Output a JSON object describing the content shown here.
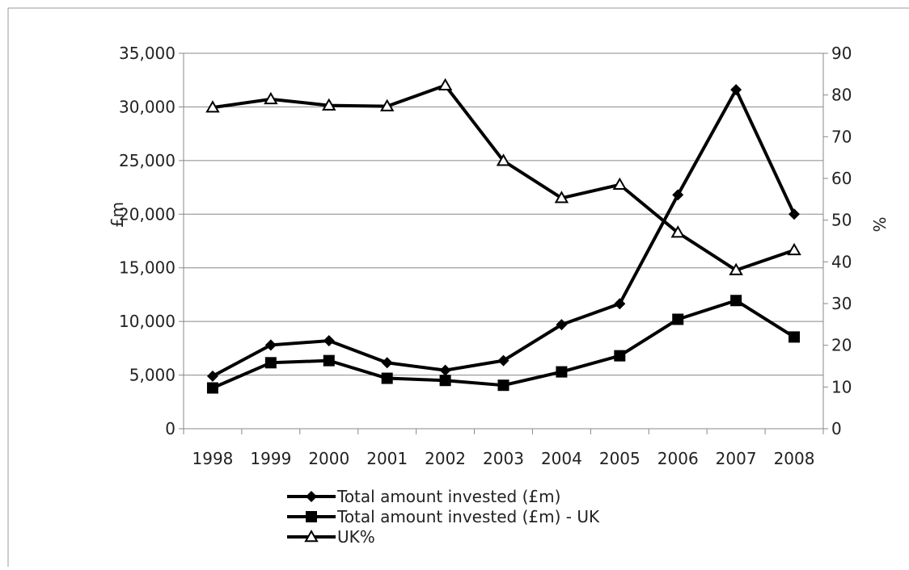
{
  "chart_data": {
    "type": "line",
    "categories": [
      "1998",
      "1999",
      "2000",
      "2001",
      "2002",
      "2003",
      "2004",
      "2005",
      "2006",
      "2007",
      "2008"
    ],
    "series": [
      {
        "name": "Total amount invested (£m)",
        "axis": "left",
        "marker": "diamond",
        "values": [
          4900,
          7800,
          8200,
          6150,
          5450,
          6350,
          9700,
          11650,
          21800,
          31600,
          20000
        ]
      },
      {
        "name": "Total amount invested (£m) - UK",
        "axis": "left",
        "marker": "square",
        "values": [
          3800,
          6150,
          6350,
          4700,
          4500,
          4050,
          5300,
          6800,
          10200,
          11950,
          8550
        ]
      },
      {
        "name": "UK%",
        "axis": "right",
        "marker": "triangle",
        "values": [
          77,
          79,
          77.5,
          77.3,
          82.3,
          64.2,
          55.3,
          58.5,
          47,
          38,
          42.8
        ]
      }
    ],
    "ylabel": "£m",
    "y2label": "%",
    "ylim": [
      0,
      35000
    ],
    "y2lim": [
      0,
      90
    ],
    "yticks": [
      "0",
      "5,000",
      "10,000",
      "15,000",
      "20,000",
      "25,000",
      "30,000",
      "35,000"
    ],
    "y2ticks": [
      "0",
      "10",
      "20",
      "30",
      "40",
      "50",
      "60",
      "70",
      "80",
      "90"
    ],
    "grid": true,
    "legend_position": "bottom",
    "colors": {
      "line": "#000000",
      "grid": "#888888",
      "axis": "#888888",
      "frame": "#999999"
    }
  }
}
